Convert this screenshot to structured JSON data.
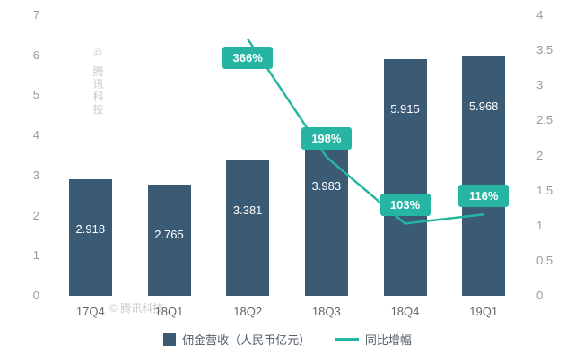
{
  "watermark": {
    "text": "© 腾讯科技"
  },
  "chart_data": {
    "type": "bar",
    "title": "",
    "categories": [
      "17Q4",
      "18Q1",
      "18Q2",
      "18Q3",
      "18Q4",
      "19Q1"
    ],
    "series": [
      {
        "name": "佣金营收（人民币亿元）",
        "type": "bar",
        "axis": "left",
        "color": "#3b5a74",
        "values": [
          2.918,
          2.765,
          3.381,
          3.983,
          5.915,
          5.968
        ],
        "labels": [
          "2.918",
          "2.765",
          "3.381",
          "3.983",
          "5.915",
          "5.968"
        ]
      },
      {
        "name": "同比增幅",
        "type": "line",
        "axis": "right",
        "color": "#27b5a3",
        "values": [
          null,
          null,
          3.66,
          1.98,
          1.03,
          1.16
        ],
        "labels": [
          null,
          null,
          "366%",
          "198%",
          "103%",
          "116%"
        ]
      }
    ],
    "left_axis": {
      "min": 0,
      "max": 7,
      "ticks": [
        0,
        1,
        2,
        3,
        4,
        5,
        6,
        7
      ]
    },
    "right_axis": {
      "min": 0,
      "max": 4,
      "ticks": [
        0,
        0.5,
        1,
        1.5,
        2,
        2.5,
        3,
        3.5,
        4
      ]
    },
    "grid": false,
    "legend_position": "bottom"
  }
}
